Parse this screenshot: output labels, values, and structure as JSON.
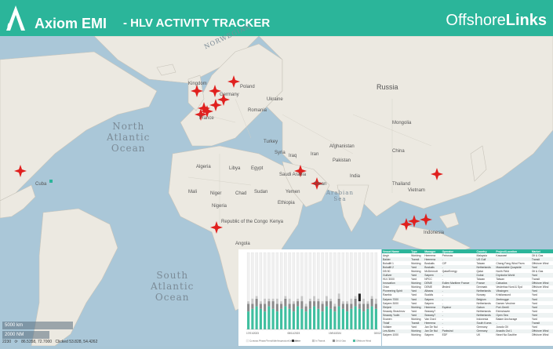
{
  "header": {
    "brand": "Axiom EMI",
    "title": "- HLV ACTIVITY TRACKER",
    "partner_prefix": "Offshore",
    "partner_bold": "Links",
    "bg_color": "#2bb59a"
  },
  "map": {
    "oceans": [
      {
        "line1": "North",
        "line2": "Atlantic",
        "line3": "Ocean"
      },
      {
        "line1": "South",
        "line2": "Atlantic",
        "line3": "Ocean"
      },
      {
        "line1": "NORWEGIAN",
        "line2": "",
        "line3": ""
      },
      {
        "line1": "Arabian",
        "line2": "Sea",
        "line3": ""
      }
    ],
    "countries": [
      "Kingdom",
      "France",
      "Germany",
      "Poland",
      "Ukraine",
      "Romania",
      "Turkey",
      "Syria",
      "Iraq",
      "Iran",
      "Algeria",
      "Libya",
      "Egypt",
      "Saudi Arabia",
      "Yemen",
      "Oman",
      "Mali",
      "Niger",
      "Nigeria",
      "Chad",
      "Sudan",
      "Ethiopia",
      "Kenya",
      "Angola",
      "Republic of the Congo",
      "Cuba",
      "India",
      "Pakistan",
      "Afghanistan",
      "China",
      "Mongolia",
      "Russia",
      "Thailand",
      "Vietnam",
      "Indonesia"
    ],
    "marker_color": "#e0201e",
    "scale_labels": [
      "5000 km",
      "2000 NM"
    ],
    "status_coords": "86.5358, 72.7000",
    "status_mouse": "Clicked 53.828, 54.4262",
    "status_zoom": "2230"
  },
  "chart_data": {
    "type": "bar",
    "categories": [
      "17/01/2023",
      "01/02/2023",
      "15/02/2023",
      "01/03/2023",
      "15/03/2023",
      "29/03/2023",
      "12/04/2023",
      "26/04/2023",
      "10/05/2023",
      "24/05/2023",
      "07/06/2023",
      "21/06/2023",
      "05/07/2023",
      "19/07/2023",
      "02/08/2023",
      "16/08/2023",
      "30/08/2023",
      "13/09/2023",
      "27/09/2023",
      "11/10/2023",
      "25/10/2023",
      "08/11/2023",
      "22/11/2023",
      "06/12/2023",
      "20/12/2023",
      "03/01/2024",
      "17/01/2024",
      "31/01/2024",
      "14/02/2024",
      "28/02/2024",
      "13/03/2024",
      "27/03/2024"
    ],
    "x_tick_labels": [
      "17/01/2023",
      "08/11/2023",
      "19/04/2024",
      "02/02/2024"
    ],
    "series": [
      {
        "name": "Offshore Wind",
        "color": "#3fbf9f",
        "values": [
          7,
          8,
          9,
          8,
          7,
          9,
          8,
          7,
          8,
          9,
          8,
          7,
          9,
          8,
          7,
          8,
          9,
          8,
          7,
          9,
          8,
          7,
          9,
          8,
          7,
          8,
          9,
          8,
          7,
          8,
          9,
          8
        ]
      },
      {
        "name": "Oil & Gas",
        "color": "#8c8c8c",
        "values": [
          3,
          2,
          3,
          2,
          3,
          2,
          3,
          3,
          2,
          3,
          2,
          3,
          2,
          3,
          2,
          3,
          2,
          3,
          3,
          2,
          3,
          2,
          3,
          2,
          3,
          2,
          3,
          2,
          3,
          2,
          3,
          2
        ]
      },
      {
        "name": "In Transit",
        "color": "#c8c8c8",
        "values": [
          1,
          2,
          1,
          1,
          2,
          1,
          1,
          2,
          1,
          1,
          2,
          1,
          1,
          2,
          1,
          1,
          2,
          1,
          1,
          2,
          1,
          1,
          2,
          1,
          1,
          2,
          1,
          1,
          2,
          1,
          1,
          2
        ]
      },
      {
        "name": "Other",
        "color": "#222222",
        "values": [
          0,
          0,
          0,
          0,
          0,
          0,
          0,
          0,
          0,
          0,
          0,
          0,
          0,
          0,
          0,
          0,
          0,
          0,
          0,
          0,
          0,
          0,
          0,
          0,
          0,
          0,
          0,
          3,
          0,
          0,
          0,
          0
        ]
      },
      {
        "name": "Contract Phase/Trend/Idle/Inspection/Unknown",
        "color": "#f0f0f0",
        "values": [
          19,
          18,
          17,
          19,
          18,
          18,
          18,
          18,
          19,
          17,
          18,
          19,
          18,
          17,
          20,
          18,
          17,
          18,
          19,
          17,
          18,
          20,
          16,
          19,
          19,
          18,
          17,
          16,
          18,
          19,
          17,
          18
        ]
      }
    ],
    "ylim": [
      0,
      30
    ],
    "legend": "bottom"
  },
  "table": {
    "columns": [
      "Vessel Name",
      "Type",
      "Manager",
      "Operator",
      "Country",
      "Project/Location",
      "Market"
    ],
    "rows": [
      [
        "Aegir",
        "Working",
        "Heerema",
        "Petronas",
        "Malaysia",
        "Kasawari",
        "Oil & Gas"
      ],
      [
        "Balder",
        "Transit",
        "Heerema",
        "-",
        "US Gulf",
        "-",
        "Transit"
      ],
      [
        "Bokalift 1",
        "Working",
        "Boskalis",
        "CIP",
        "Taiwan",
        "Chang Fang Wind Farm",
        "Offshore Wind"
      ],
      [
        "Bokalift 2",
        "Yard",
        "Boskalis",
        "-",
        "Netherlands",
        "Maasvlakte Quayside",
        "Yard"
      ],
      [
        "DB 50",
        "Working",
        "McDermott",
        "QatarEnergy",
        "Qatar",
        "North Field",
        "Oil & Gas"
      ],
      [
        "Gulliver",
        "Yard",
        "Saipem",
        "-",
        "Dubai",
        "Drydocks World",
        "Yard"
      ],
      [
        "HLV 3000",
        "Yard",
        "NPCC",
        "-",
        "Taiwan",
        "Taiwan",
        "Transit"
      ],
      [
        "Innovation",
        "Working",
        "DEME",
        "Eolien Maritime France",
        "France",
        "Calvados",
        "Offshore Wind"
      ],
      [
        "Orion",
        "Working",
        "DEME",
        "Ørsted",
        "Denmark",
        "Vesterhav Nord & Syd",
        "Offshore Wind"
      ],
      [
        "Pioneering Spirit",
        "Yard",
        "Allseas",
        "-",
        "Netherlands",
        "Vlissingen",
        "Yard"
      ],
      [
        "Rambiz",
        "Yard",
        "Scaldis",
        "-",
        "Norway",
        "Kristiansund",
        "Yard"
      ],
      [
        "Saipem 7000",
        "Yard",
        "Saipem",
        "-",
        "Belgium",
        "Zeebrugge",
        "Yard"
      ],
      [
        "Saipem 3000",
        "Yard",
        "Saipem",
        "-",
        "Netherlands",
        "Damen Verolme",
        "Yard"
      ],
      [
        "Sleipnir",
        "Working",
        "Heerema",
        "Equinor",
        "Gabon",
        "Port-Gentil",
        "Yard"
      ],
      [
        "Seaway Strashnov",
        "Yard",
        "Seaway7",
        "-",
        "Netherlands",
        "Eemshaven",
        "Yard"
      ],
      [
        "Seaway Yudin",
        "Yard",
        "Seaway7",
        "-",
        "Netherlands",
        "Open Sea",
        "Yard"
      ],
      [
        "Svanen",
        "Working",
        "Van Oord",
        "-",
        "Indonesia",
        "Batam Anchorage",
        "Yard"
      ],
      [
        "Thialf",
        "Transit",
        "Heerema",
        "-",
        "South Korea",
        "-",
        "Transit"
      ],
      [
        "Voltaire",
        "Yard",
        "Jan De Nul",
        "-",
        "Germany",
        "Jurado Oil",
        "Yard"
      ],
      [
        "Les Alizés",
        "Working",
        "Jan De Nul",
        "Parkwind",
        "Germany",
        "Arcadis Ost 1",
        "Offshore Wind"
      ],
      [
        "Saipem 1000",
        "Working",
        "Saipem",
        "EDF",
        "UK",
        "Neart Na Gaoithe",
        "Offshore Wind"
      ]
    ]
  }
}
